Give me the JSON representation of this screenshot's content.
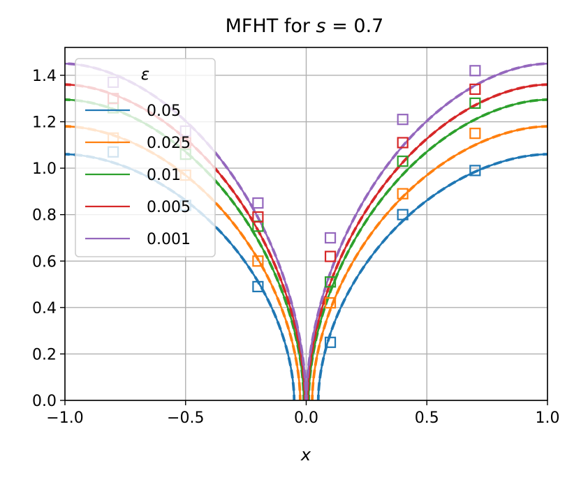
{
  "chart_data": {
    "type": "line",
    "title": "MFHT for s = 0.7",
    "title_parts": {
      "prefix": "MFHT for ",
      "var": "s",
      "suffix": " = 0.7"
    },
    "xlabel": "x",
    "ylabel": "",
    "xlim": [
      -1.0,
      1.0
    ],
    "ylim": [
      0.0,
      1.52
    ],
    "x_ticks": [
      -1.0,
      -0.5,
      0.0,
      0.5,
      1.0
    ],
    "x_tick_labels": [
      "−1.0",
      "−0.5",
      "0.0",
      "0.5",
      "1.0"
    ],
    "y_ticks": [
      0.0,
      0.2,
      0.4,
      0.6,
      0.8,
      1.0,
      1.2,
      1.4
    ],
    "y_tick_labels": [
      "0.0",
      "0.2",
      "0.4",
      "0.6",
      "0.8",
      "1.0",
      "1.2",
      "1.4"
    ],
    "grid": true,
    "legend": {
      "title": "ε",
      "placement": "top-left"
    },
    "marker_x": [
      -0.8,
      -0.5,
      -0.2,
      0.1,
      0.4,
      0.7
    ],
    "series": [
      {
        "name": "0.05",
        "color": "#1f77b4",
        "eps": 0.05,
        "end_value": 1.06,
        "markers": [
          1.07,
          0.84,
          0.49,
          0.25,
          0.8,
          0.99
        ]
      },
      {
        "name": "0.025",
        "color": "#ff7f0e",
        "eps": 0.025,
        "end_value": 1.18,
        "markers": [
          1.13,
          0.97,
          0.6,
          0.42,
          0.89,
          1.15
        ]
      },
      {
        "name": "0.01",
        "color": "#2ca02c",
        "eps": 0.01,
        "end_value": 1.295,
        "markers": [
          1.26,
          1.06,
          0.75,
          0.51,
          1.03,
          1.28
        ]
      },
      {
        "name": "0.005",
        "color": "#d62728",
        "eps": 0.005,
        "end_value": 1.36,
        "markers": [
          1.3,
          1.11,
          0.79,
          0.62,
          1.11,
          1.34
        ]
      },
      {
        "name": "0.001",
        "color": "#9467bd",
        "eps": 0.001,
        "end_value": 1.45,
        "markers": [
          1.37,
          1.16,
          0.85,
          0.7,
          1.21,
          1.42
        ]
      }
    ]
  }
}
